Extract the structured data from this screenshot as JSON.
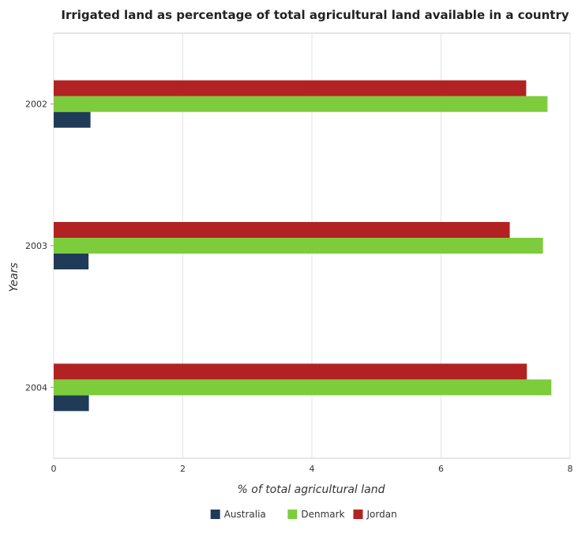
{
  "chart_data": {
    "type": "bar",
    "orientation": "horizontal",
    "title": "Irrigated land as percentage of total agricultural land available in a country",
    "xlabel": "% of total agricultural land",
    "ylabel": "Years",
    "categories": [
      "2002",
      "2003",
      "2004"
    ],
    "series": [
      {
        "name": "Australia",
        "color": "#1f3b58",
        "values": [
          0.57,
          0.54,
          0.545
        ]
      },
      {
        "name": "Denmark",
        "color": "#7ccc3c",
        "values": [
          7.65,
          7.58,
          7.71
        ]
      },
      {
        "name": "Jordan",
        "color": "#b22222",
        "values": [
          7.32,
          7.065,
          7.33
        ]
      }
    ],
    "xlim": [
      0,
      8
    ],
    "xticks": [
      0,
      2,
      4,
      6,
      8
    ],
    "grid": true,
    "legend_position": "bottom"
  }
}
